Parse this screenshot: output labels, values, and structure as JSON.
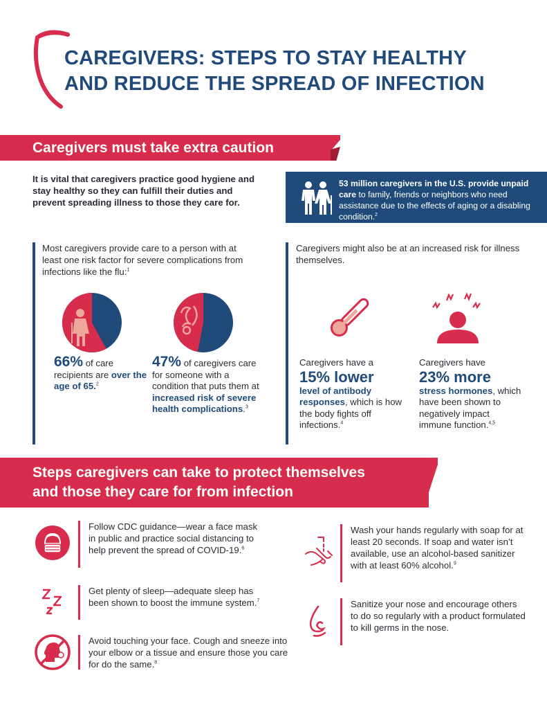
{
  "header": {
    "title_line1": "CAREGIVERS: STEPS TO STAY HEALTHY",
    "title_line2": "AND REDUCE THE SPREAD OF INFECTION"
  },
  "section1": {
    "heading": "Caregivers must take extra caution",
    "intro": "It is vital that caregivers practice good hygiene and stay healthy so they can fulfill their duties and prevent spreading illness to those they care for.",
    "statbox": {
      "bold": "53 million caregivers in the U.S. provide unpaid care",
      "rest": " to family, friends or neighbors who need assistance due to the effects of aging or a disabling condition.",
      "ref": "2"
    },
    "left_panel": {
      "intro": "Most caregivers provide care to a person with at least one risk factor for severe complications from infections like the flu:",
      "intro_ref": "1",
      "stat1": {
        "pct": "66%",
        "text": " of care recipients are ",
        "bold": "over the age of 65.",
        "ref": "2"
      },
      "stat2": {
        "pct": "47%",
        "text": " of caregivers care for someone with a condition that puts them at ",
        "bold": "increased risk of severe health complications",
        "end": ".",
        "ref": "3"
      }
    },
    "right_panel": {
      "intro": "Caregivers might also be at an increased risk for illness themselves.",
      "stat1": {
        "pre": "Caregivers have a",
        "big": "15% lower",
        "bold": "level of antibody responses",
        "text": ", which is how the body fights off infections.",
        "ref": "4"
      },
      "stat2": {
        "pre": "Caregivers have",
        "big": "23% more",
        "bold": "stress hormones",
        "text": ", which have been shown to negatively impact immune function.",
        "ref": "4,5"
      }
    }
  },
  "section2": {
    "heading_line1": "Steps caregivers can take to protect themselves",
    "heading_line2": "and those they care for from infection",
    "steps": [
      {
        "text": "Follow CDC guidance—wear a face mask in public and practice social distancing to help prevent the spread of COVID-19.",
        "ref": "6"
      },
      {
        "text": "Get plenty of sleep—adequate sleep has been shown to boost the immune system.",
        "ref": "7"
      },
      {
        "text": "Avoid touching your face. Cough and sneeze into your elbow or a tissue and ensure those you care for do the same.",
        "ref": "8"
      },
      {
        "text": "Wash your hands regularly with soap for at least 20 seconds. If soap and water isn’t available, use an alcohol-based sanitizer with at least 60% alcohol.",
        "ref": "9"
      },
      {
        "text": "Sanitize your nose and encourage others to do so regularly with a product formulated to kill germs in the nose.",
        "ref": ""
      }
    ]
  },
  "colors": {
    "navy": "#1f4a7a",
    "red": "#d72c4b",
    "pink": "#f0a79b"
  }
}
